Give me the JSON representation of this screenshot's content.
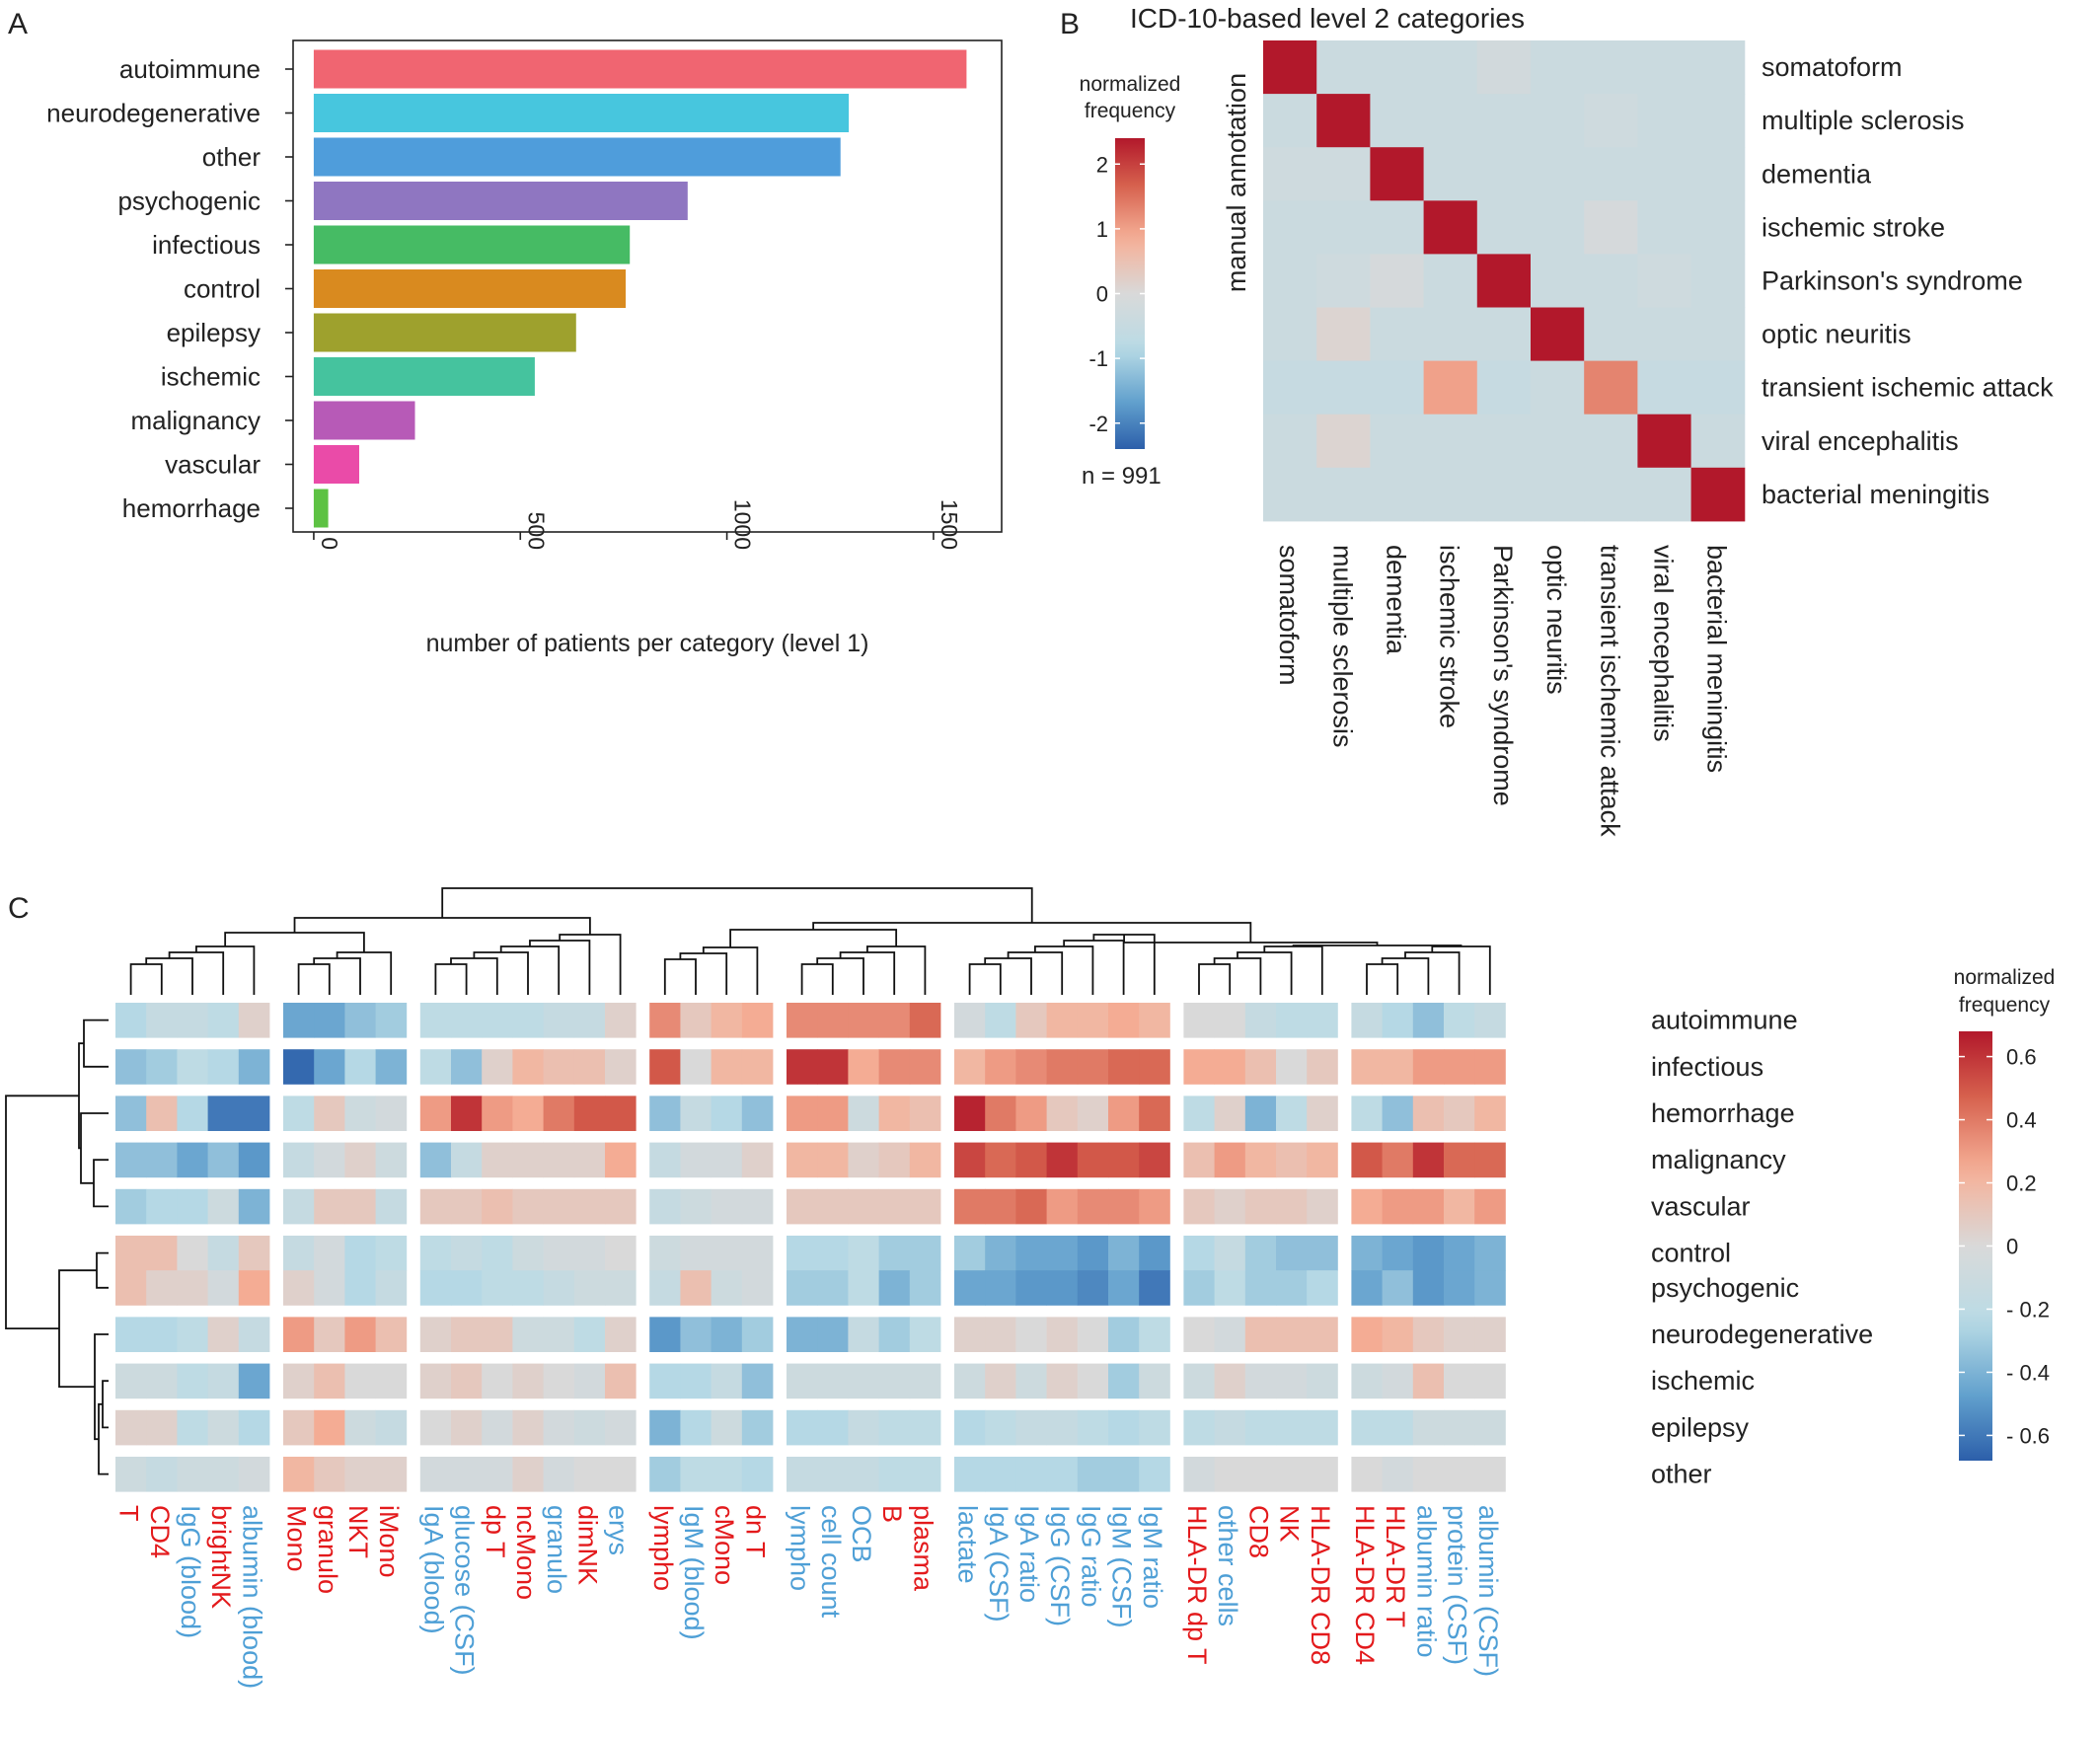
{
  "panels": {
    "a": "A",
    "b": "B",
    "c": "C"
  },
  "colors": {
    "text": "#222222",
    "frame": "#222222",
    "red_label": "#e31a1c",
    "blue_label": "#4e9fd6",
    "scale_min": "#2c5faa",
    "scale_mid": "#d9d9d9",
    "scale_max": "#b2182b",
    "scale_low": "#b9dbe6"
  },
  "chart_data": [
    {
      "id": "A",
      "type": "bar",
      "orientation": "horizontal",
      "categories": [
        "autoimmune",
        "neurodegenerative",
        "other",
        "psychogenic",
        "infectious",
        "control",
        "epilepsy",
        "ischemic",
        "malignancy",
        "vascular",
        "hemorrhage"
      ],
      "values": [
        1580,
        1295,
        1275,
        905,
        765,
        755,
        635,
        535,
        245,
        110,
        35
      ],
      "bar_colors": [
        "#f06571",
        "#47c6de",
        "#4f9ddb",
        "#8f76c1",
        "#46bb64",
        "#d98a1f",
        "#9ea12d",
        "#45c39e",
        "#b75ab7",
        "#ea4ba8",
        "#5dc243"
      ],
      "xlabel": "number of patients per category (level 1)",
      "xticks": [
        "0",
        "500",
        "1000",
        "1500"
      ],
      "xtick_values": [
        0,
        500,
        1000,
        1500
      ],
      "xlim": [
        -50,
        1665
      ],
      "grid": false
    },
    {
      "id": "B",
      "type": "heatmap",
      "title": "ICD-10-based level 2 categories",
      "ylabel": "manual annotation",
      "rows": [
        "somatoform",
        "multiple sclerosis",
        "dementia",
        "ischemic stroke",
        "Parkinson's syndrome",
        "optic neuritis",
        "transient ischemic attack",
        "viral encephalitis",
        "bacterial meningitis"
      ],
      "columns": [
        "somatoform",
        "multiple sclerosis",
        "dementia",
        "ischemic stroke",
        "Parkinson's syndrome",
        "optic neuritis",
        "transient ischemic attack",
        "viral encephalitis",
        "bacterial meningitis"
      ],
      "values": [
        [
          2.6,
          -0.4,
          -0.4,
          -0.4,
          -0.2,
          -0.4,
          -0.4,
          -0.4,
          -0.4
        ],
        [
          -0.4,
          2.6,
          -0.4,
          -0.4,
          -0.4,
          -0.4,
          -0.3,
          -0.4,
          -0.4
        ],
        [
          -0.3,
          -0.3,
          2.6,
          -0.4,
          -0.4,
          -0.4,
          -0.4,
          -0.4,
          -0.4
        ],
        [
          -0.4,
          -0.4,
          -0.4,
          2.6,
          -0.4,
          -0.4,
          -0.1,
          -0.4,
          -0.4
        ],
        [
          -0.4,
          -0.3,
          -0.1,
          -0.4,
          2.6,
          -0.4,
          -0.4,
          -0.3,
          -0.4
        ],
        [
          -0.4,
          0.1,
          -0.4,
          -0.4,
          -0.4,
          2.6,
          -0.4,
          -0.4,
          -0.4
        ],
        [
          -0.5,
          -0.5,
          -0.5,
          1.0,
          -0.5,
          -0.4,
          1.3,
          -0.5,
          -0.5
        ],
        [
          -0.4,
          0.1,
          -0.4,
          -0.4,
          -0.4,
          -0.4,
          -0.4,
          2.6,
          -0.4
        ],
        [
          -0.4,
          -0.4,
          -0.4,
          -0.4,
          -0.4,
          -0.4,
          -0.4,
          -0.4,
          2.6
        ]
      ],
      "legend": {
        "title_lines": [
          "normalized",
          "frequency"
        ],
        "ticks": [
          "2",
          "1",
          "0",
          "-1",
          "-2"
        ],
        "tick_values": [
          2,
          1,
          0,
          -1,
          -2
        ],
        "range": [
          -2.4,
          2.4
        ],
        "note": "n = 991"
      }
    },
    {
      "id": "C",
      "type": "heatmap",
      "rows": [
        "autoimmune",
        "infectious",
        "hemorrhage",
        "malignancy",
        "vascular",
        "control",
        "psychogenic",
        "neurodegenerative",
        "ischemic",
        "epilepsy",
        "other"
      ],
      "columns": [
        "T",
        "CD4",
        "IgG (blood)",
        "brightNK",
        "albumin (blood)",
        "Mono",
        "granulo",
        "NKT",
        "iMono",
        "IgA (blood)",
        "glucose (CSF)",
        "dp T",
        "ncMono",
        "granulo",
        "dimNK",
        "erys",
        "lympho",
        "IgM (blood)",
        "cMono",
        "dn T",
        "lympho",
        "cell count",
        "OCB",
        "B",
        "plasma",
        "lactate",
        "IgA (CSF)",
        "IgA ratio",
        "IgG (CSF)",
        "IgG ratio",
        "IgM (CSF)",
        "IgM ratio",
        "HLA-DR dp T",
        "other cells",
        "CD8",
        "NK",
        "HLA-DR CD8",
        "HLA-DR CD4",
        "HLA-DR T",
        "albumin ratio",
        "protein (CSF)",
        "albumin (CSF)"
      ],
      "column_colors": [
        "red",
        "red",
        "blue",
        "red",
        "blue",
        "red",
        "red",
        "red",
        "red",
        "blue",
        "blue",
        "red",
        "red",
        "blue",
        "red",
        "blue",
        "red",
        "blue",
        "red",
        "red",
        "blue",
        "blue",
        "blue",
        "red",
        "red",
        "blue",
        "blue",
        "blue",
        "blue",
        "blue",
        "blue",
        "blue",
        "red",
        "blue",
        "red",
        "red",
        "red",
        "red",
        "red",
        "blue",
        "blue",
        "blue"
      ],
      "column_blocks": [
        5,
        4,
        7,
        4,
        5,
        7,
        5,
        5
      ],
      "row_blocks": [
        1,
        1,
        1,
        1,
        1,
        2,
        1,
        1,
        1,
        1
      ],
      "values": [
        [
          -0.25,
          -0.15,
          -0.15,
          -0.2,
          0.05,
          -0.45,
          -0.45,
          -0.35,
          -0.3,
          -0.2,
          -0.2,
          -0.2,
          -0.2,
          -0.15,
          -0.15,
          0.05,
          0.35,
          0.1,
          0.2,
          0.25,
          0.35,
          0.35,
          0.35,
          0.35,
          0.45,
          -0.05,
          -0.2,
          0.1,
          0.2,
          0.2,
          0.25,
          0.2,
          0.0,
          0.0,
          -0.15,
          -0.2,
          -0.2,
          -0.15,
          -0.25,
          -0.35,
          -0.2,
          -0.15
        ],
        [
          -0.35,
          -0.3,
          -0.2,
          -0.25,
          -0.4,
          -0.65,
          -0.45,
          -0.25,
          -0.4,
          -0.2,
          -0.35,
          0.05,
          0.2,
          0.15,
          0.15,
          0.05,
          0.5,
          0.0,
          0.2,
          0.2,
          0.6,
          0.6,
          0.25,
          0.35,
          0.35,
          0.2,
          0.3,
          0.35,
          0.4,
          0.4,
          0.45,
          0.45,
          0.25,
          0.25,
          0.15,
          0.0,
          0.1,
          0.2,
          0.2,
          0.3,
          0.3,
          0.3
        ],
        [
          -0.35,
          0.15,
          -0.25,
          -0.6,
          -0.6,
          -0.2,
          0.1,
          -0.1,
          -0.05,
          0.3,
          0.6,
          0.3,
          0.25,
          0.4,
          0.5,
          0.5,
          -0.35,
          -0.15,
          -0.25,
          -0.35,
          0.3,
          0.3,
          -0.1,
          0.2,
          0.15,
          0.65,
          0.4,
          0.3,
          0.1,
          0.05,
          0.3,
          0.45,
          -0.2,
          0.05,
          -0.4,
          -0.2,
          0.05,
          -0.2,
          -0.35,
          0.15,
          0.1,
          0.2
        ],
        [
          -0.35,
          -0.35,
          -0.45,
          -0.35,
          -0.5,
          -0.15,
          -0.05,
          0.05,
          -0.1,
          -0.35,
          -0.15,
          0.05,
          0.05,
          0.05,
          0.05,
          0.25,
          -0.15,
          -0.05,
          -0.05,
          0.05,
          0.2,
          0.2,
          0.05,
          0.1,
          0.2,
          0.55,
          0.45,
          0.5,
          0.6,
          0.5,
          0.5,
          0.55,
          0.15,
          0.3,
          0.2,
          0.15,
          0.2,
          0.5,
          0.4,
          0.6,
          0.45,
          0.45
        ],
        [
          -0.3,
          -0.25,
          -0.25,
          -0.1,
          -0.4,
          -0.15,
          0.1,
          0.1,
          -0.15,
          0.1,
          0.1,
          0.15,
          0.1,
          0.1,
          0.1,
          0.1,
          -0.15,
          -0.1,
          -0.05,
          -0.05,
          0.1,
          0.1,
          0.1,
          0.1,
          0.1,
          0.4,
          0.4,
          0.45,
          0.3,
          0.35,
          0.35,
          0.3,
          0.1,
          0.05,
          0.1,
          0.1,
          0.05,
          0.25,
          0.3,
          0.3,
          0.2,
          0.3
        ],
        [
          0.15,
          0.15,
          0.0,
          -0.15,
          0.1,
          -0.15,
          -0.05,
          -0.25,
          -0.2,
          -0.2,
          -0.15,
          -0.2,
          -0.1,
          -0.05,
          -0.05,
          0.0,
          -0.1,
          -0.05,
          -0.05,
          -0.05,
          -0.25,
          -0.25,
          -0.2,
          -0.3,
          -0.3,
          -0.3,
          -0.4,
          -0.45,
          -0.45,
          -0.5,
          -0.4,
          -0.5,
          -0.25,
          -0.15,
          -0.3,
          -0.35,
          -0.35,
          -0.4,
          -0.45,
          -0.5,
          -0.45,
          -0.4
        ],
        [
          0.15,
          0.05,
          0.05,
          -0.05,
          0.25,
          0.05,
          -0.05,
          -0.25,
          -0.15,
          -0.25,
          -0.25,
          -0.2,
          -0.2,
          -0.15,
          -0.1,
          -0.1,
          -0.15,
          0.15,
          -0.1,
          -0.05,
          -0.3,
          -0.3,
          -0.2,
          -0.4,
          -0.3,
          -0.45,
          -0.45,
          -0.5,
          -0.5,
          -0.55,
          -0.45,
          -0.6,
          -0.3,
          -0.2,
          -0.3,
          -0.3,
          -0.25,
          -0.45,
          -0.35,
          -0.5,
          -0.45,
          -0.4
        ],
        [
          -0.25,
          -0.25,
          -0.2,
          0.05,
          -0.15,
          0.3,
          0.1,
          0.3,
          0.15,
          0.05,
          0.1,
          0.1,
          -0.1,
          -0.1,
          -0.2,
          0.05,
          -0.5,
          -0.35,
          -0.4,
          -0.3,
          -0.4,
          -0.4,
          -0.15,
          -0.3,
          -0.2,
          0.05,
          0.05,
          0.0,
          0.05,
          0.0,
          -0.3,
          -0.2,
          0.0,
          -0.05,
          0.15,
          0.15,
          0.15,
          0.25,
          0.2,
          0.1,
          0.05,
          0.05
        ],
        [
          -0.1,
          -0.1,
          -0.2,
          -0.15,
          -0.45,
          0.05,
          0.15,
          0.0,
          0.0,
          0.05,
          0.1,
          0.0,
          0.05,
          0.0,
          -0.05,
          0.15,
          -0.25,
          -0.25,
          -0.15,
          -0.35,
          -0.1,
          -0.1,
          -0.1,
          -0.1,
          -0.1,
          -0.1,
          0.05,
          -0.1,
          0.05,
          0.0,
          -0.3,
          -0.1,
          -0.1,
          0.05,
          -0.05,
          -0.05,
          -0.1,
          -0.1,
          -0.05,
          0.15,
          0.0,
          0.0
        ],
        [
          0.05,
          0.05,
          -0.2,
          -0.1,
          -0.25,
          0.1,
          0.25,
          -0.1,
          -0.15,
          0.0,
          0.05,
          -0.05,
          0.05,
          -0.05,
          -0.1,
          -0.05,
          -0.4,
          -0.25,
          -0.1,
          -0.3,
          -0.25,
          -0.25,
          -0.15,
          -0.2,
          -0.2,
          -0.25,
          -0.2,
          -0.15,
          -0.15,
          -0.2,
          -0.25,
          -0.2,
          -0.2,
          -0.15,
          -0.2,
          -0.2,
          -0.2,
          -0.2,
          -0.2,
          -0.1,
          -0.1,
          -0.1
        ],
        [
          -0.1,
          -0.15,
          -0.1,
          -0.1,
          -0.05,
          0.2,
          0.1,
          0.05,
          0.05,
          -0.05,
          -0.05,
          -0.05,
          0.05,
          -0.05,
          0.0,
          0.0,
          -0.3,
          -0.2,
          -0.2,
          -0.25,
          -0.15,
          -0.15,
          -0.15,
          -0.2,
          -0.2,
          -0.25,
          -0.25,
          -0.25,
          -0.25,
          -0.3,
          -0.3,
          -0.25,
          -0.05,
          0.0,
          0.0,
          0.0,
          0.0,
          0.0,
          -0.05,
          0.0,
          0.0,
          0.0
        ]
      ],
      "legend": {
        "title_lines": [
          "normalized",
          "frequency"
        ],
        "ticks": [
          "0.6",
          "0.4",
          "0.2",
          "0",
          "- 0.2",
          "- 0.4",
          "- 0.6"
        ],
        "tick_values": [
          0.6,
          0.4,
          0.2,
          0,
          -0.2,
          -0.4,
          -0.6
        ],
        "range": [
          -0.68,
          0.68
        ]
      }
    }
  ]
}
